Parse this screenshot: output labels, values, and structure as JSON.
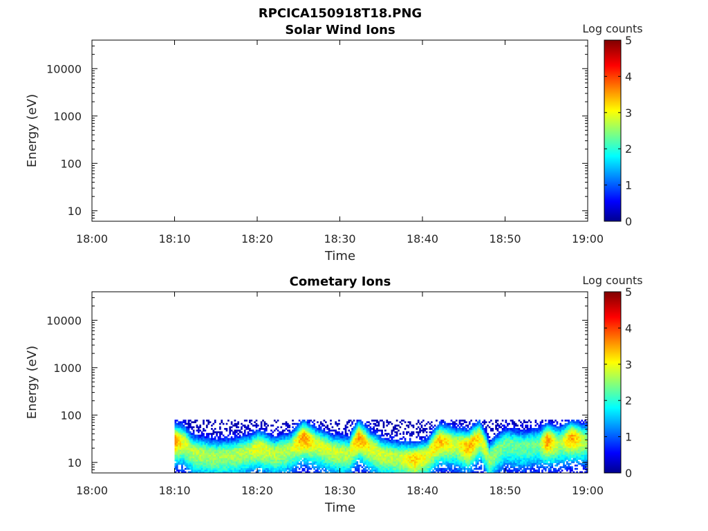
{
  "figure": {
    "title": "RPCICA150918T18.PNG"
  },
  "chart_data": [
    {
      "type": "heatmap",
      "title": "Solar Wind Ions",
      "xlabel": "Time",
      "ylabel": "Energy (eV)",
      "x_ticks": [
        "18:00",
        "18:10",
        "18:20",
        "18:30",
        "18:40",
        "18:50",
        "19:00"
      ],
      "y_ticks": [
        10,
        100,
        1000,
        10000
      ],
      "y_scale": "log",
      "xlim": [
        "18:00",
        "19:00"
      ],
      "ylim": [
        6,
        40000
      ],
      "colorbar": {
        "label": "Log counts",
        "ticks": [
          0,
          1,
          2,
          3,
          4,
          5
        ],
        "range": [
          0,
          5
        ],
        "colormap": "jet"
      },
      "data_description": "",
      "time_min": [],
      "peak_energy_eV": [],
      "peak_log_counts": []
    },
    {
      "type": "heatmap",
      "title": "Cometary Ions",
      "xlabel": "Time",
      "ylabel": "Energy (eV)",
      "x_ticks": [
        "18:00",
        "18:10",
        "18:20",
        "18:30",
        "18:40",
        "18:50",
        "19:00"
      ],
      "y_ticks": [
        10,
        100,
        1000,
        10000
      ],
      "y_scale": "log",
      "xlim": [
        "18:00",
        "19:00"
      ],
      "ylim": [
        6,
        40000
      ],
      "colorbar": {
        "label": "Log counts",
        "ticks": [
          0,
          1,
          2,
          3,
          4,
          5
        ],
        "range": [
          0,
          5
        ],
        "colormap": "jet"
      },
      "data_start": "18:10",
      "data_end": "19:00",
      "energy_range_eV": [
        6,
        80
      ],
      "time_min": [
        10,
        11,
        12,
        13,
        15,
        17,
        19,
        20,
        22,
        24,
        25.5,
        27,
        29,
        31,
        32.2,
        33.5,
        35,
        37,
        39,
        40.5,
        42,
        44,
        45.5,
        46.8,
        48,
        50,
        52,
        54,
        55,
        56.5,
        58,
        59.5,
        60
      ],
      "peak_energy_eV": [
        30,
        28,
        18,
        16,
        14,
        15,
        18,
        22,
        16,
        20,
        35,
        25,
        18,
        16,
        35,
        22,
        15,
        13,
        12,
        14,
        30,
        25,
        22,
        35,
        12,
        25,
        22,
        25,
        30,
        26,
        35,
        30,
        30
      ],
      "peak_log_counts": [
        3.6,
        3.0,
        2.8,
        2.8,
        2.7,
        2.7,
        2.8,
        3.1,
        2.8,
        2.8,
        3.7,
        3.0,
        2.9,
        2.8,
        3.7,
        3.1,
        2.9,
        2.8,
        3.4,
        3.0,
        3.5,
        2.9,
        3.6,
        3.2,
        2.7,
        2.4,
        2.4,
        2.4,
        3.7,
        2.6,
        3.6,
        2.8,
        2.6
      ]
    }
  ]
}
